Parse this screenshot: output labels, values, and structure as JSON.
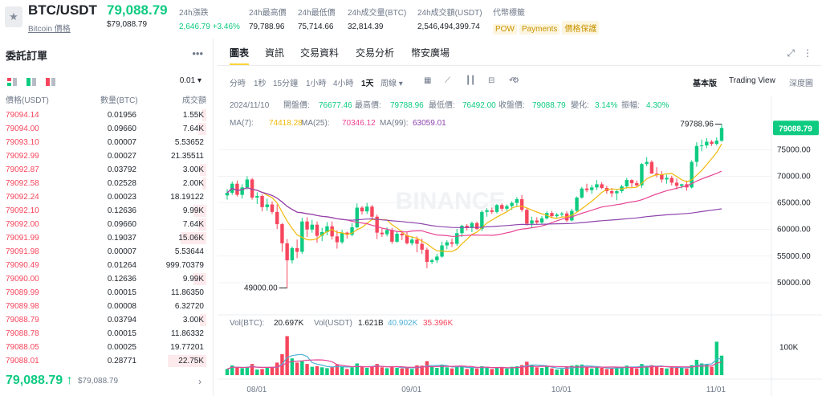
{
  "header": {
    "pair": "BTC/USDT",
    "coin_link": "Bitcoin 價格",
    "last_price": "79,088.79",
    "last_price_usd": "$79,088.79",
    "stats": [
      {
        "label": "24h漲跌",
        "value": "2,646.79 +3.46%",
        "up": true
      },
      {
        "label": "24h最高價",
        "value": "79,788.96"
      },
      {
        "label": "24h最低價",
        "value": "75,714.66"
      },
      {
        "label": "24h成交量(BTC)",
        "value": "32,814.39"
      },
      {
        "label": "24h成交額(USDT)",
        "value": "2,546,494,399.74"
      }
    ],
    "tags_label": "代幣標籤",
    "tags": [
      "POW",
      "Payments",
      "價格保護"
    ]
  },
  "orderbook": {
    "title": "委託訂單",
    "more_icon": "more-dots-icon",
    "precision": "0.01",
    "columns": [
      "價格(USDT)",
      "數量(BTC)",
      "成交額"
    ],
    "rows": [
      {
        "price": "79094.14",
        "amount": "0.01956",
        "total": "1.55K",
        "depth": 0.03
      },
      {
        "price": "79094.00",
        "amount": "0.09660",
        "total": "7.64K",
        "depth": 0.06
      },
      {
        "price": "79093.10",
        "amount": "0.00007",
        "total": "5.53652",
        "depth": 0
      },
      {
        "price": "79092.99",
        "amount": "0.00027",
        "total": "21.35511",
        "depth": 0
      },
      {
        "price": "79092.87",
        "amount": "0.03792",
        "total": "3.00K",
        "depth": 0.05
      },
      {
        "price": "79092.58",
        "amount": "0.02528",
        "total": "2.00K",
        "depth": 0.03
      },
      {
        "price": "79092.24",
        "amount": "0.00023",
        "total": "18.19122",
        "depth": 0
      },
      {
        "price": "79092.10",
        "amount": "0.12636",
        "total": "9.99K",
        "depth": 0.1
      },
      {
        "price": "79092.00",
        "amount": "0.09660",
        "total": "7.64K",
        "depth": 0.06
      },
      {
        "price": "79091.99",
        "amount": "0.19037",
        "total": "15.06K",
        "depth": 0.2
      },
      {
        "price": "79091.98",
        "amount": "0.00007",
        "total": "5.53644",
        "depth": 0
      },
      {
        "price": "79090.49",
        "amount": "0.01264",
        "total": "999.70379",
        "depth": 0
      },
      {
        "price": "79090.00",
        "amount": "0.12636",
        "total": "9.99K",
        "depth": 0.1
      },
      {
        "price": "79089.99",
        "amount": "0.00015",
        "total": "11.86350",
        "depth": 0
      },
      {
        "price": "79089.98",
        "amount": "0.00008",
        "total": "6.32720",
        "depth": 0
      },
      {
        "price": "79088.79",
        "amount": "0.03794",
        "total": "3.00K",
        "depth": 0.05
      },
      {
        "price": "79088.78",
        "amount": "0.00015",
        "total": "11.86332",
        "depth": 0
      },
      {
        "price": "79088.05",
        "amount": "0.00025",
        "total": "19.77201",
        "depth": 0
      },
      {
        "price": "79088.01",
        "amount": "0.28771",
        "total": "22.75K",
        "depth": 0.3
      }
    ],
    "last_price": "79,088.79",
    "last_arrow": "↑",
    "last_price_usd": "$79,088.79"
  },
  "chart_panel": {
    "tabs": [
      "圖表",
      "資訊",
      "交易資料",
      "交易分析",
      "幣安廣場"
    ],
    "active_tab": 0,
    "intervals": [
      "分時",
      "1秒",
      "15分鐘",
      "1小時",
      "4小時",
      "1天",
      "周線"
    ],
    "active_interval": "1天",
    "views": [
      "基本版",
      "Trading View",
      "深度圖"
    ],
    "active_view": "基本版"
  },
  "chart_data": {
    "type": "candlestick",
    "interval": "1D",
    "ohlc_info": {
      "date": "2024/11/10",
      "open_label": "開盤價:",
      "open": "76677.46",
      "high_label": "最高價:",
      "high": "79788.96",
      "low_label": "最低價:",
      "low": "76492.00",
      "close_label": "收盤價:",
      "close": "79088.79",
      "change_label": "變化:",
      "change": "3.14%",
      "amp_label": "振幅:",
      "amp": "4.30%"
    },
    "ma": [
      {
        "name": "MA(7):",
        "value": "74418.28",
        "color": "#f0b90b"
      },
      {
        "name": "MA(25):",
        "value": "70346.12",
        "color": "#e84393"
      },
      {
        "name": "MA(99):",
        "value": "63059.01",
        "color": "#8e44ad"
      }
    ],
    "volume_info": {
      "label": "Vol(BTC):",
      "btc": "20.697K",
      "usdt_label": "Vol(USDT)",
      "usdt": "1.621B",
      "v1": "40.902K",
      "v2": "35.396K"
    },
    "price_axis": [
      "75000.00",
      "70000.00",
      "65000.00",
      "60000.00",
      "55000.00",
      "50000.00"
    ],
    "price_ticks": [
      75000,
      70000,
      65000,
      60000,
      55000,
      50000
    ],
    "volume_axis": [
      "100K"
    ],
    "date_axis": [
      "08/01",
      "09/01",
      "10/01",
      "11/01"
    ],
    "current_price_label": "79088.79",
    "high_marker": "79788.96",
    "low_marker": "49000.00",
    "watermark": "BINANCE",
    "ylim": [
      45000,
      82000
    ],
    "candles": [
      [
        66400,
        67600,
        65600,
        66900
      ],
      [
        66900,
        69000,
        66500,
        68600
      ],
      [
        68600,
        69200,
        66200,
        66500
      ],
      [
        66500,
        68500,
        65800,
        67900
      ],
      [
        67900,
        70000,
        67500,
        69400
      ],
      [
        69400,
        69700,
        65600,
        66000
      ],
      [
        66000,
        67000,
        64800,
        66300
      ],
      [
        66300,
        66600,
        63400,
        64200
      ],
      [
        64200,
        65800,
        63500,
        64700
      ],
      [
        64700,
        65300,
        62900,
        63300
      ],
      [
        63300,
        64700,
        60100,
        61000
      ],
      [
        61000,
        61200,
        55800,
        57400
      ],
      [
        57400,
        58200,
        49000,
        54200
      ],
      [
        54200,
        56800,
        53600,
        56500
      ],
      [
        56500,
        58100,
        54600,
        55800
      ],
      [
        55800,
        62200,
        55400,
        61500
      ],
      [
        61500,
        62300,
        58600,
        60000
      ],
      [
        60000,
        61800,
        59400,
        60900
      ],
      [
        60900,
        61500,
        57500,
        58800
      ],
      [
        58800,
        60300,
        57800,
        59500
      ],
      [
        59500,
        61400,
        58900,
        60600
      ],
      [
        60600,
        61500,
        58100,
        58700
      ],
      [
        58700,
        59800,
        56400,
        57600
      ],
      [
        57600,
        59900,
        57300,
        59400
      ],
      [
        59400,
        59600,
        58300,
        59000
      ],
      [
        59000,
        61200,
        58700,
        60400
      ],
      [
        60400,
        64900,
        60200,
        64100
      ],
      [
        64100,
        64400,
        62800,
        63400
      ],
      [
        63400,
        65000,
        62900,
        64300
      ],
      [
        64300,
        64600,
        61800,
        62400
      ],
      [
        62400,
        62800,
        58200,
        59400
      ],
      [
        59400,
        60200,
        58600,
        59100
      ],
      [
        59100,
        60400,
        58700,
        59900
      ],
      [
        59900,
        60300,
        57300,
        57700
      ],
      [
        57700,
        59600,
        57500,
        59200
      ],
      [
        59200,
        59800,
        58000,
        58900
      ],
      [
        58900,
        59500,
        57200,
        57400
      ],
      [
        57400,
        58600,
        57000,
        58100
      ],
      [
        58100,
        58700,
        55700,
        57300
      ],
      [
        57300,
        58300,
        55400,
        56200
      ],
      [
        56200,
        56600,
        52700,
        53900
      ],
      [
        53900,
        54500,
        53500,
        54200
      ],
      [
        54200,
        55400,
        53700,
        54900
      ],
      [
        54900,
        57700,
        54700,
        57000
      ],
      [
        57000,
        58000,
        56300,
        57600
      ],
      [
        57600,
        58300,
        56700,
        57300
      ],
      [
        57300,
        60100,
        56900,
        59300
      ],
      [
        59300,
        60900,
        58600,
        60700
      ],
      [
        60700,
        61000,
        59800,
        60300
      ],
      [
        60300,
        61500,
        59500,
        61200
      ],
      [
        61200,
        61500,
        59900,
        60100
      ],
      [
        60100,
        63600,
        59700,
        63300
      ],
      [
        63300,
        64000,
        62400,
        63600
      ],
      [
        63600,
        64100,
        62900,
        63300
      ],
      [
        63300,
        64800,
        63000,
        64600
      ],
      [
        64600,
        64900,
        63400,
        63900
      ],
      [
        63900,
        64700,
        63500,
        64400
      ],
      [
        64400,
        65300,
        63700,
        65000
      ],
      [
        65000,
        66100,
        64200,
        65700
      ],
      [
        65700,
        66500,
        63300,
        63700
      ],
      [
        63700,
        64100,
        60700,
        61100
      ],
      [
        61100,
        62400,
        60300,
        61700
      ],
      [
        61700,
        62300,
        60900,
        61300
      ],
      [
        61300,
        62500,
        61000,
        62100
      ],
      [
        62100,
        63400,
        61900,
        63100
      ],
      [
        63100,
        63500,
        62100,
        62500
      ],
      [
        62500,
        63100,
        62200,
        62800
      ],
      [
        62800,
        63300,
        62300,
        63000
      ],
      [
        63000,
        63400,
        61400,
        61700
      ],
      [
        61700,
        63900,
        61500,
        63500
      ],
      [
        63500,
        66200,
        63300,
        66000
      ],
      [
        66000,
        68000,
        65800,
        67700
      ],
      [
        67700,
        68600,
        67000,
        67400
      ],
      [
        67400,
        68400,
        66700,
        67900
      ],
      [
        67900,
        69300,
        67400,
        68500
      ],
      [
        68500,
        68900,
        67600,
        67800
      ],
      [
        67800,
        68200,
        66700,
        67200
      ],
      [
        67200,
        67800,
        66100,
        66800
      ],
      [
        66800,
        67500,
        65500,
        67200
      ],
      [
        67200,
        68400,
        66900,
        68100
      ],
      [
        68100,
        69700,
        67700,
        69300
      ],
      [
        69300,
        69400,
        68000,
        68700
      ],
      [
        68700,
        69200,
        67900,
        68300
      ],
      [
        68300,
        72500,
        67800,
        72300
      ],
      [
        72300,
        73600,
        71900,
        72700
      ],
      [
        72700,
        73000,
        70700,
        70500
      ],
      [
        70500,
        71700,
        69800,
        70300
      ],
      [
        70300,
        71000,
        68800,
        69400
      ],
      [
        69400,
        70300,
        68600,
        69700
      ],
      [
        69700,
        70100,
        68300,
        68800
      ],
      [
        68800,
        69600,
        67500,
        68200
      ],
      [
        68200,
        68600,
        67700,
        68500
      ],
      [
        68500,
        69200,
        67300,
        67900
      ],
      [
        67900,
        73000,
        67700,
        72700
      ],
      [
        72700,
        76400,
        71800,
        75700
      ],
      [
        75700,
        76900,
        74700,
        75800
      ],
      [
        75800,
        77200,
        75300,
        76500
      ],
      [
        76500,
        76800,
        75700,
        76100
      ],
      [
        76100,
        77300,
        75800,
        76700
      ],
      [
        76677,
        79789,
        76492,
        79089
      ]
    ],
    "volumes": [
      22,
      35,
      28,
      25,
      30,
      40,
      20,
      22,
      26,
      30,
      45,
      75,
      140,
      60,
      45,
      50,
      40,
      30,
      32,
      28,
      25,
      30,
      38,
      30,
      22,
      28,
      42,
      30,
      26,
      30,
      40,
      28,
      25,
      30,
      26,
      24,
      28,
      22,
      35,
      34,
      50,
      30,
      26,
      38,
      28,
      24,
      33,
      30,
      22,
      26,
      24,
      32,
      30,
      22,
      28,
      26,
      24,
      30,
      32,
      36,
      48,
      36,
      28,
      26,
      30,
      24,
      20,
      22,
      30,
      34,
      36,
      38,
      28,
      24,
      28,
      26,
      22,
      24,
      28,
      30,
      34,
      30,
      24,
      40,
      32,
      36,
      30,
      26,
      24,
      28,
      30,
      26,
      24,
      36,
      55,
      42,
      38,
      30,
      120,
      70
    ]
  }
}
